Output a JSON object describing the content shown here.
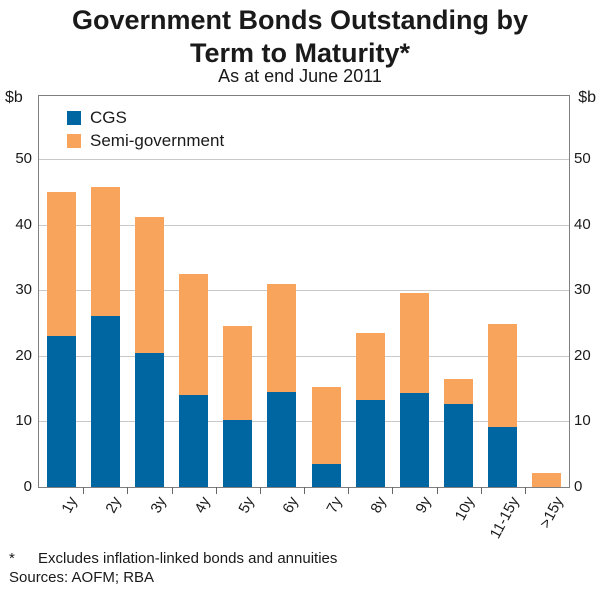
{
  "title_line1": "Government Bonds Outstanding by",
  "title_line2": "Term to Maturity*",
  "subtitle": "As at end June 2011",
  "axis": {
    "unit_left": "$b",
    "unit_right": "$b"
  },
  "legend": {
    "items": [
      {
        "label": "CGS",
        "color": "#0066a1"
      },
      {
        "label": "Semi-government",
        "color": "#f9a45c"
      }
    ]
  },
  "chart_data": {
    "type": "bar",
    "stacked": true,
    "title": "Government Bonds Outstanding by Term to Maturity*",
    "subtitle": "As at end June 2011",
    "ylabel": "$b",
    "categories": [
      "1y",
      "2y",
      "3y",
      "4y",
      "5y",
      "6y",
      "7y",
      "8y",
      "9y",
      "10y",
      "11-15y",
      ">15y"
    ],
    "series": [
      {
        "name": "CGS",
        "color": "#0066a1",
        "values": [
          23.0,
          26.0,
          20.5,
          14.0,
          10.2,
          14.5,
          3.5,
          13.2,
          14.3,
          12.6,
          9.2,
          0.0
        ]
      },
      {
        "name": "Semi-government",
        "color": "#f9a45c",
        "values": [
          22.0,
          19.8,
          20.7,
          18.5,
          14.3,
          16.5,
          11.8,
          10.3,
          15.2,
          3.9,
          15.6,
          2.2
        ]
      }
    ],
    "totals": [
      45.0,
      45.8,
      41.2,
      32.5,
      24.5,
      31.0,
      15.3,
      23.5,
      29.5,
      16.5,
      24.8,
      2.2
    ],
    "ylim": [
      0,
      59.6
    ],
    "yticks": [
      0,
      10,
      20,
      30,
      40,
      50
    ],
    "grid": true,
    "legend_position": "top-left"
  },
  "footnote": {
    "marker": "*",
    "text": "Excludes inflation-linked bonds and annuities",
    "sources": "Sources: AOFM; RBA"
  }
}
